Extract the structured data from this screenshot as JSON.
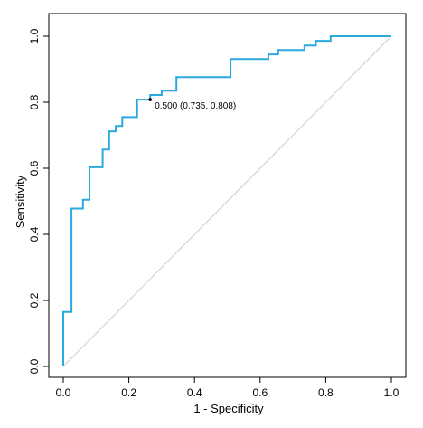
{
  "chart_data": {
    "type": "line",
    "title": "",
    "xlabel": "1 - Specificity",
    "ylabel": "Sensitivity",
    "xlim": [
      0,
      1
    ],
    "ylim": [
      0,
      1
    ],
    "x_ticks": [
      "0.0",
      "0.2",
      "0.4",
      "0.6",
      "0.8",
      "1.0"
    ],
    "y_ticks": [
      "0.0",
      "0.2",
      "0.4",
      "0.6",
      "0.8",
      "1.0"
    ],
    "grid": false,
    "legend": "none",
    "series": [
      {
        "color": "#29a9dd",
        "points": [
          [
            0.0,
            0.0
          ],
          [
            0.0,
            0.165
          ],
          [
            0.025,
            0.165
          ],
          [
            0.025,
            0.478
          ],
          [
            0.06,
            0.478
          ],
          [
            0.06,
            0.505
          ],
          [
            0.08,
            0.505
          ],
          [
            0.08,
            0.603
          ],
          [
            0.12,
            0.603
          ],
          [
            0.12,
            0.657
          ],
          [
            0.14,
            0.657
          ],
          [
            0.14,
            0.712
          ],
          [
            0.16,
            0.712
          ],
          [
            0.16,
            0.728
          ],
          [
            0.18,
            0.728
          ],
          [
            0.18,
            0.755
          ],
          [
            0.225,
            0.755
          ],
          [
            0.225,
            0.808
          ],
          [
            0.265,
            0.808
          ],
          [
            0.265,
            0.822
          ],
          [
            0.3,
            0.822
          ],
          [
            0.3,
            0.835
          ],
          [
            0.345,
            0.835
          ],
          [
            0.345,
            0.876
          ],
          [
            0.51,
            0.876
          ],
          [
            0.51,
            0.931
          ],
          [
            0.625,
            0.931
          ],
          [
            0.625,
            0.945
          ],
          [
            0.655,
            0.945
          ],
          [
            0.655,
            0.958
          ],
          [
            0.735,
            0.958
          ],
          [
            0.735,
            0.972
          ],
          [
            0.77,
            0.972
          ],
          [
            0.77,
            0.986
          ],
          [
            0.815,
            0.986
          ],
          [
            0.815,
            1.0
          ],
          [
            1.0,
            1.0
          ]
        ]
      }
    ],
    "reference_line": {
      "from": [
        0,
        0
      ],
      "to": [
        1,
        1
      ],
      "color": "#cccccc"
    },
    "annotation": {
      "text": "0.500 (0.735, 0.808)",
      "x": 0.265,
      "y": 0.808
    }
  }
}
